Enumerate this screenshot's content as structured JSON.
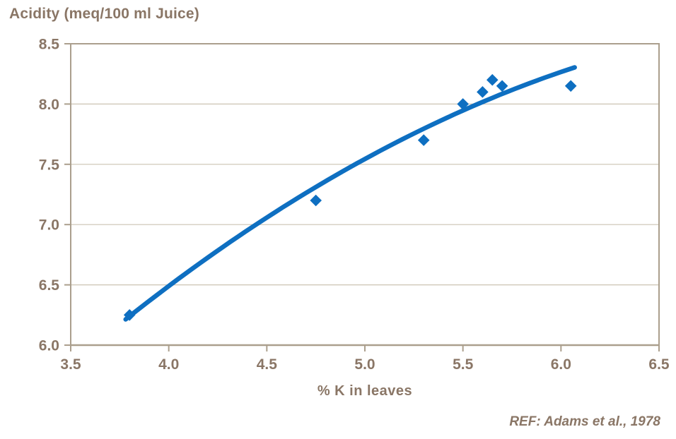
{
  "chart_data": {
    "type": "scatter",
    "title": "Acidity (meq/100 ml Juice)",
    "xlabel": "% K in leaves",
    "ylabel": "",
    "x": [
      3.8,
      4.75,
      5.3,
      5.5,
      5.6,
      5.65,
      5.7,
      6.05
    ],
    "y": [
      6.25,
      7.2,
      7.7,
      8.0,
      8.1,
      8.2,
      8.15,
      8.15
    ],
    "xlim": [
      3.5,
      6.5
    ],
    "ylim": [
      6.0,
      8.5
    ],
    "x_ticks": [
      3.5,
      4.0,
      4.5,
      5.0,
      5.5,
      6.0,
      6.5
    ],
    "y_ticks": [
      6.0,
      6.5,
      7.0,
      7.5,
      8.0,
      8.5
    ],
    "grid": "horizontal-only",
    "legend": "none",
    "marker": "diamond",
    "trendline": {
      "type": "quadratic",
      "coefficients": {
        "a": -1.0441,
        "b": 2.5473,
        "c": -0.16594
      },
      "x_range": [
        3.78,
        6.07
      ]
    },
    "colors": {
      "series": "#0e6fc1",
      "text": "#8a7666",
      "gridline": "#ccc3b3",
      "axis": "#ab9f8d",
      "background": "#ffffff"
    }
  },
  "footer": {
    "reference": "REF: Adams et al., 1978"
  }
}
